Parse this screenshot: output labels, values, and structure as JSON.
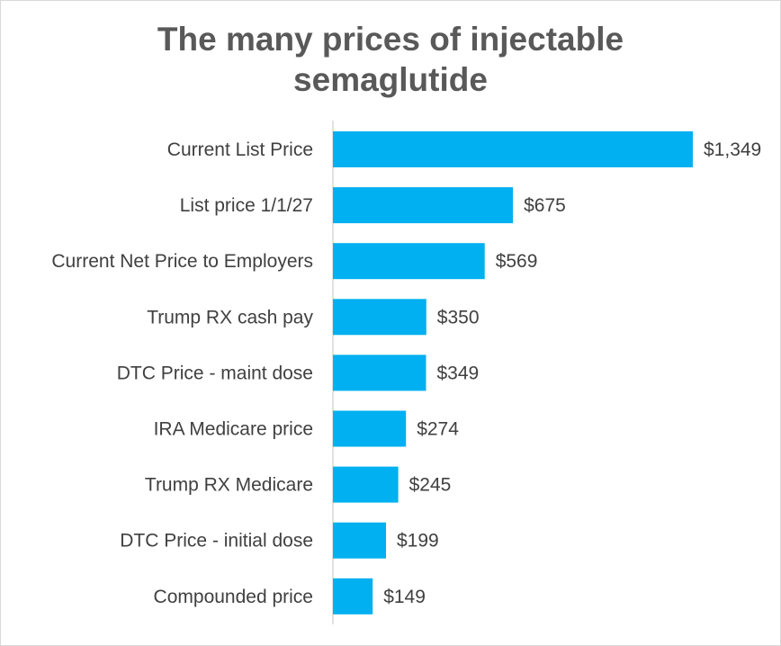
{
  "chart_data": {
    "type": "bar",
    "orientation": "horizontal",
    "title_lines": [
      "The many prices of injectable",
      "semaglutide"
    ],
    "categories": [
      "Current List Price",
      "List price 1/1/27",
      "Current Net Price to Employers",
      "Trump RX cash pay",
      "DTC Price - maint dose",
      "IRA Medicare price",
      "Trump RX Medicare",
      "DTC Price - initial dose",
      "Compounded price"
    ],
    "values": [
      1349,
      675,
      569,
      350,
      349,
      274,
      245,
      199,
      149
    ],
    "value_labels": [
      "$1,349",
      "$675",
      "$569",
      "$350",
      "$349",
      "$274",
      "$245",
      "$199",
      "$149"
    ],
    "xlim": [
      0,
      1349
    ],
    "grid": false,
    "legend": "none",
    "bar_color": "#00B0F0",
    "axis_line_color": "#d9d9d9"
  }
}
